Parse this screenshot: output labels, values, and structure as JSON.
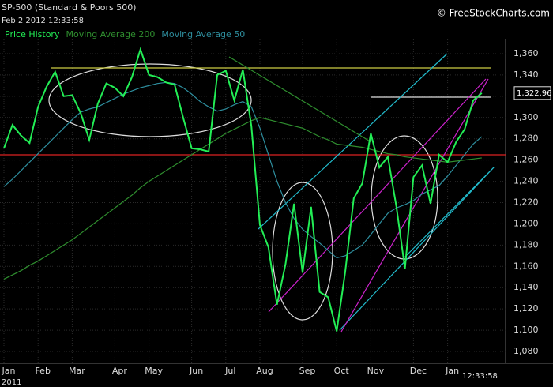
{
  "chart_data": {
    "type": "line",
    "title": "SP-500 (Standard & Poors 500)",
    "source": "© FreeStockCharts.com",
    "timestamp": "Feb 2 2012 12:33:58",
    "clock": "12:33:58",
    "year_label": "2011",
    "last_price_label": "1,322.96",
    "categories": [
      "Jan",
      null,
      null,
      null,
      "Feb",
      null,
      null,
      null,
      "Mar",
      null,
      null,
      null,
      null,
      "Apr",
      null,
      null,
      null,
      "May",
      null,
      null,
      null,
      null,
      "Jun",
      null,
      null,
      null,
      "Jul",
      null,
      null,
      null,
      "Aug",
      null,
      null,
      null,
      null,
      "Sep",
      null,
      null,
      null,
      "Oct",
      null,
      null,
      null,
      "Nov",
      null,
      null,
      null,
      null,
      "Dec",
      null,
      null,
      null,
      "Jan",
      null,
      null,
      null,
      null
    ],
    "series": [
      {
        "name": "Price History",
        "color": "#22ee55",
        "values": [
          1271,
          1293,
          1283,
          1276,
          1310,
          1329,
          1343,
          1320,
          1321,
          1304,
          1279,
          1313,
          1332,
          1328,
          1320,
          1338,
          1364,
          1340,
          1338,
          1333,
          1331,
          1300,
          1271,
          1270,
          1268,
          1340,
          1344,
          1316,
          1345,
          1292,
          1199,
          1178,
          1124,
          1162,
          1219,
          1154,
          1216,
          1136,
          1131,
          1099,
          1155,
          1224,
          1238,
          1285,
          1253,
          1263,
          1216,
          1158,
          1244,
          1255,
          1219,
          1265,
          1258,
          1277,
          1289,
          1316,
          1323
        ]
      },
      {
        "name": "Moving Average 200",
        "color": "#2f8f2f",
        "values": [
          1148,
          1152,
          1156,
          1161,
          1165,
          1170,
          1175,
          1180,
          1185,
          1191,
          1197,
          1203,
          1209,
          1215,
          1221,
          1227,
          1234,
          1240,
          1245,
          1250,
          1255,
          1260,
          1265,
          1270,
          1275,
          1280,
          1285,
          1289,
          1293,
          1297,
          1300,
          1298,
          1296,
          1294,
          1292,
          1290,
          1286,
          1282,
          1279,
          1275,
          1274,
          1273,
          1272,
          1270,
          1268,
          1266,
          1265,
          1263,
          1262,
          1261,
          1260,
          1259,
          1258,
          1259,
          1260,
          1261,
          1262
        ]
      },
      {
        "name": "Moving Average 50",
        "color": "#2e8e9e",
        "values": [
          1235,
          1242,
          1250,
          1258,
          1266,
          1274,
          1282,
          1290,
          1298,
          1305,
          1308,
          1310,
          1314,
          1318,
          1322,
          1325,
          1328,
          1330,
          1332,
          1333,
          1332,
          1328,
          1322,
          1315,
          1310,
          1306,
          1308,
          1312,
          1315,
          1310,
          1290,
          1265,
          1240,
          1220,
          1205,
          1195,
          1188,
          1182,
          1175,
          1168,
          1170,
          1175,
          1180,
          1190,
          1200,
          1210,
          1215,
          1218,
          1222,
          1228,
          1232,
          1236,
          1245,
          1255,
          1265,
          1275,
          1282
        ]
      }
    ],
    "ylim": [
      1070,
      1370
    ],
    "yticks": [
      {
        "value": 1080,
        "label": "1,080"
      },
      {
        "value": 1100,
        "label": "1,100"
      },
      {
        "value": 1120,
        "label": "1,120"
      },
      {
        "value": 1140,
        "label": "1,140"
      },
      {
        "value": 1160,
        "label": "1,160"
      },
      {
        "value": 1180,
        "label": "1,180"
      },
      {
        "value": 1200,
        "label": "1,200"
      },
      {
        "value": 1220,
        "label": "1,220"
      },
      {
        "value": 1240,
        "label": "1,240"
      },
      {
        "value": 1260,
        "label": "1,260"
      },
      {
        "value": 1280,
        "label": "1,280"
      },
      {
        "value": 1300,
        "label": "1,300"
      },
      {
        "value": 1320,
        "label": "1,320"
      },
      {
        "value": 1340,
        "label": "1,340"
      },
      {
        "value": 1360,
        "label": "1,360"
      }
    ],
    "grid": true
  }
}
